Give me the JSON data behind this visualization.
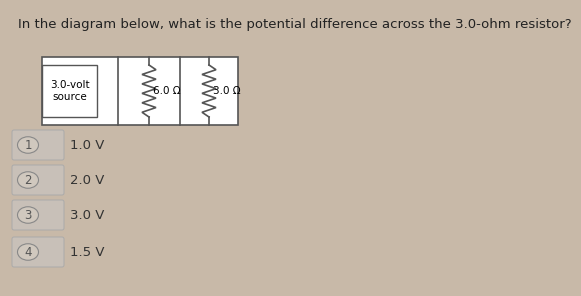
{
  "title": "In the diagram below, what is the potential difference across the 3.0-ohm resistor?",
  "title_fontsize": 9.5,
  "bg_color": "#c8b9a8",
  "source_label": "3.0-volt\nsource",
  "resistor1_label": "6.0 Ω",
  "resistor2_label": "3.0 Ω",
  "options": [
    {
      "num": "1",
      "text": "1.0 V"
    },
    {
      "num": "2",
      "text": "2.0 V"
    },
    {
      "num": "3",
      "text": "3.0 V"
    },
    {
      "num": "4",
      "text": "1.5 V"
    }
  ],
  "option_bg": "#c8c0b8",
  "option_border": "#aaaaaa",
  "option_fontsize": 9.5,
  "label_fontsize": 7.5,
  "circuit_line_color": "#555555",
  "circuit_bg": "#e8e0d4"
}
